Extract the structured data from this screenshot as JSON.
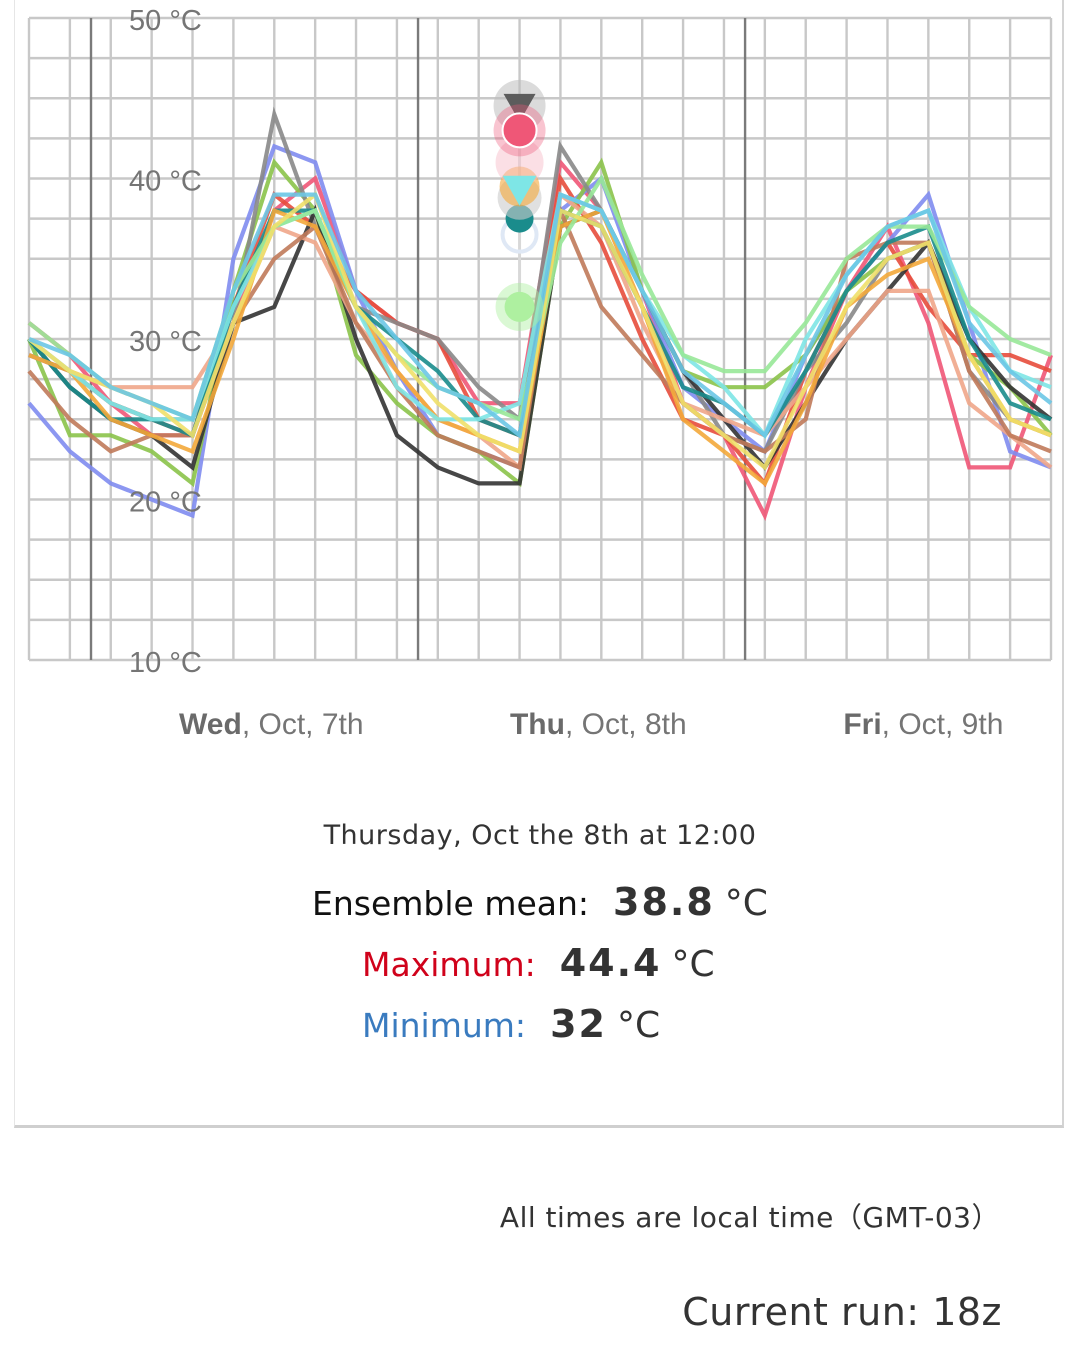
{
  "chart_data": {
    "type": "line",
    "title": "",
    "ylabel": "",
    "xlabel": "",
    "y_unit": "°C",
    "ylim": [
      10,
      50
    ],
    "y_ticks": [
      "50 °C",
      "40 °C",
      "30 °C",
      "20 °C",
      "10 °C"
    ],
    "x_day_labels": [
      {
        "bold": "Wed",
        "rest": ", Oct, 7th"
      },
      {
        "bold": "Thu",
        "rest": ", Oct, 8th"
      },
      {
        "bold": "Fri",
        "rest": ", Oct, 9th"
      }
    ],
    "x_hours_from_start": [
      0,
      3,
      6,
      9,
      12,
      15,
      18,
      21,
      24,
      27,
      30,
      33,
      36,
      39,
      42,
      45,
      48,
      51,
      54,
      57,
      60,
      63,
      66,
      69,
      72,
      75
    ],
    "grid": true,
    "legend": "none",
    "series": [
      {
        "color": "#ef5777",
        "values": [
          31,
          29,
          26,
          24,
          24,
          31,
          38,
          40,
          33,
          31,
          30,
          26,
          26,
          41,
          38,
          33,
          26,
          24,
          19,
          27,
          33,
          37,
          31,
          22,
          22,
          29
        ]
      },
      {
        "color": "#e74c3c",
        "values": [
          29,
          28,
          26,
          25,
          24,
          32,
          39,
          37,
          33,
          31,
          30,
          25,
          24,
          40,
          36,
          30,
          25,
          24,
          21,
          28,
          33,
          36,
          32,
          29,
          29,
          28
        ]
      },
      {
        "color": "#7f8cf0",
        "values": [
          26,
          23,
          21,
          20,
          19,
          35,
          42,
          41,
          33,
          28,
          24,
          23,
          22,
          38,
          40,
          33,
          27,
          25,
          23,
          29,
          33,
          36,
          39,
          31,
          23,
          22
        ]
      },
      {
        "color": "#8bc34a",
        "values": [
          30,
          24,
          24,
          23,
          21,
          33,
          41,
          38,
          29,
          26,
          24,
          23,
          21,
          37,
          41,
          33,
          28,
          27,
          27,
          29,
          33,
          35,
          36,
          29,
          27,
          24
        ]
      },
      {
        "color": "#888888",
        "values": [
          29,
          28,
          26,
          25,
          25,
          31,
          44,
          37,
          32,
          31,
          30,
          27,
          25,
          42,
          38,
          33,
          28,
          24,
          23,
          28,
          31,
          35,
          36,
          28,
          25,
          24
        ]
      },
      {
        "color": "#333333",
        "values": [
          30,
          27,
          25,
          24,
          22,
          31,
          32,
          38,
          30,
          24,
          22,
          21,
          21,
          37,
          38,
          33,
          28,
          25,
          22,
          26,
          30,
          33,
          36,
          30,
          27,
          25
        ]
      },
      {
        "color": "#f0a68a",
        "values": [
          30,
          28,
          27,
          27,
          27,
          31,
          37,
          36,
          31,
          28,
          25,
          24,
          22,
          39,
          37,
          31,
          26,
          25,
          24,
          27,
          30,
          33,
          33,
          26,
          24,
          22
        ]
      },
      {
        "color": "#c07a5a",
        "values": [
          28,
          25,
          23,
          24,
          24,
          31,
          35,
          37,
          31,
          27,
          24,
          23,
          22,
          38,
          32,
          29,
          26,
          24,
          23,
          25,
          35,
          36,
          36,
          28,
          24,
          23
        ]
      },
      {
        "color": "#1a8c8c",
        "values": [
          30,
          27,
          25,
          25,
          24,
          32,
          38,
          38,
          32,
          30,
          28,
          25,
          24,
          38,
          37,
          32,
          27,
          26,
          24,
          28,
          33,
          36,
          37,
          30,
          26,
          25
        ]
      },
      {
        "color": "#f3a83b",
        "values": [
          29,
          28,
          25,
          24,
          23,
          30,
          38,
          37,
          32,
          28,
          25,
          24,
          23,
          37,
          38,
          32,
          25,
          23,
          21,
          26,
          32,
          34,
          35,
          29,
          25,
          24
        ]
      },
      {
        "color": "#7ee6e6",
        "values": [
          30,
          28,
          26,
          25,
          25,
          32,
          37,
          38,
          32,
          27,
          25,
          25,
          26,
          39,
          38,
          33,
          29,
          27,
          24,
          30,
          34,
          37,
          38,
          32,
          28,
          27
        ]
      },
      {
        "color": "#98e898",
        "values": [
          31,
          29,
          27,
          26,
          25,
          33,
          37,
          38,
          32,
          29,
          27,
          26,
          25,
          36,
          40,
          34,
          29,
          28,
          28,
          31,
          35,
          37,
          37,
          32,
          30,
          29
        ]
      },
      {
        "color": "#f0e06a",
        "values": [
          30,
          28,
          27,
          26,
          24,
          31,
          37,
          39,
          32,
          29,
          26,
          24,
          23,
          38,
          37,
          32,
          26,
          24,
          22,
          27,
          32,
          35,
          36,
          29,
          25,
          24
        ]
      },
      {
        "color": "#6cc6e6",
        "values": [
          30,
          29,
          27,
          26,
          25,
          33,
          39,
          39,
          33,
          30,
          27,
          26,
          24,
          39,
          38,
          33,
          28,
          26,
          24,
          29,
          34,
          37,
          38,
          31,
          28,
          26
        ]
      }
    ]
  },
  "markers": {
    "max": {
      "value": 44.4,
      "color": "#5c5c5c"
    },
    "circle_red": {
      "value": 43.0,
      "color": "#ef5777"
    },
    "pink": {
      "value": 41.0,
      "color": "#f7c0cc"
    },
    "orange": {
      "value": 39.5,
      "color": "#f3a83b"
    },
    "min_triangle": {
      "value": 39.3,
      "color": "#7ee6e6"
    },
    "mean": {
      "value": 38.8,
      "color": "#cccccc"
    },
    "teal": {
      "value": 37.5,
      "color": "#1a8c8c"
    },
    "low_ring": {
      "value": 36.5,
      "color": "#dfe8f5"
    },
    "green": {
      "value": 32.0,
      "color": "#aef0a0"
    }
  },
  "tooltip": {
    "time": "Thursday, Oct the 8th at 12:00",
    "mean_label": "Ensemble mean:",
    "mean_value": "38.8",
    "max_label": "Maximum:",
    "max_value": "44.4",
    "min_label": "Minimum:",
    "min_value": "32",
    "unit": "°C"
  },
  "footer": {
    "timezone_note": "All times are local time（GMT-03）",
    "current_run": "Current run: 18z"
  }
}
